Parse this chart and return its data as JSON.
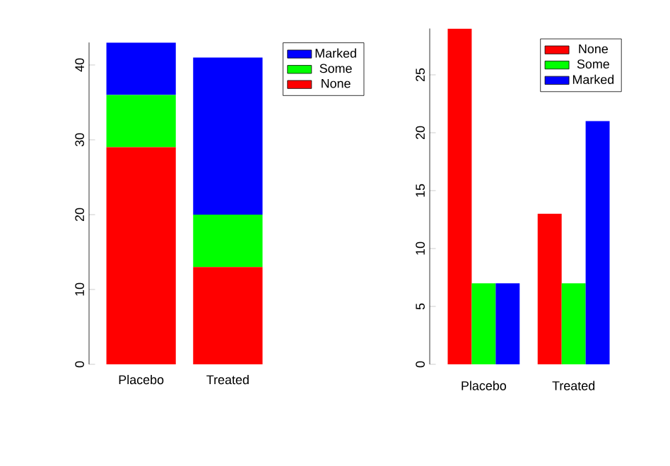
{
  "chart_data": [
    {
      "type": "bar",
      "stacked": true,
      "categories": [
        "Placebo",
        "Treated"
      ],
      "ylim": [
        0,
        43
      ],
      "yticks": [
        0,
        10,
        20,
        30,
        40
      ],
      "legend": "top right",
      "grid": false,
      "series": [
        {
          "name": "None",
          "color": "#ff0000",
          "values": [
            29,
            13
          ]
        },
        {
          "name": "Some",
          "color": "#00ff00",
          "values": [
            7,
            7
          ]
        },
        {
          "name": "Marked",
          "color": "#0000ff",
          "values": [
            7,
            21
          ]
        }
      ]
    },
    {
      "type": "bar",
      "categories": [
        "Placebo",
        "Treated"
      ],
      "ylim": [
        0,
        29
      ],
      "yticks": [
        0,
        5,
        10,
        15,
        20,
        25
      ],
      "legend": "top right",
      "grid": false,
      "series": [
        {
          "name": "None",
          "color": "#ff0000",
          "values": [
            29,
            13
          ]
        },
        {
          "name": "Some",
          "color": "#00ff00",
          "values": [
            7,
            7
          ]
        },
        {
          "name": "Marked",
          "color": "#0000ff",
          "values": [
            7,
            21
          ]
        }
      ]
    }
  ]
}
